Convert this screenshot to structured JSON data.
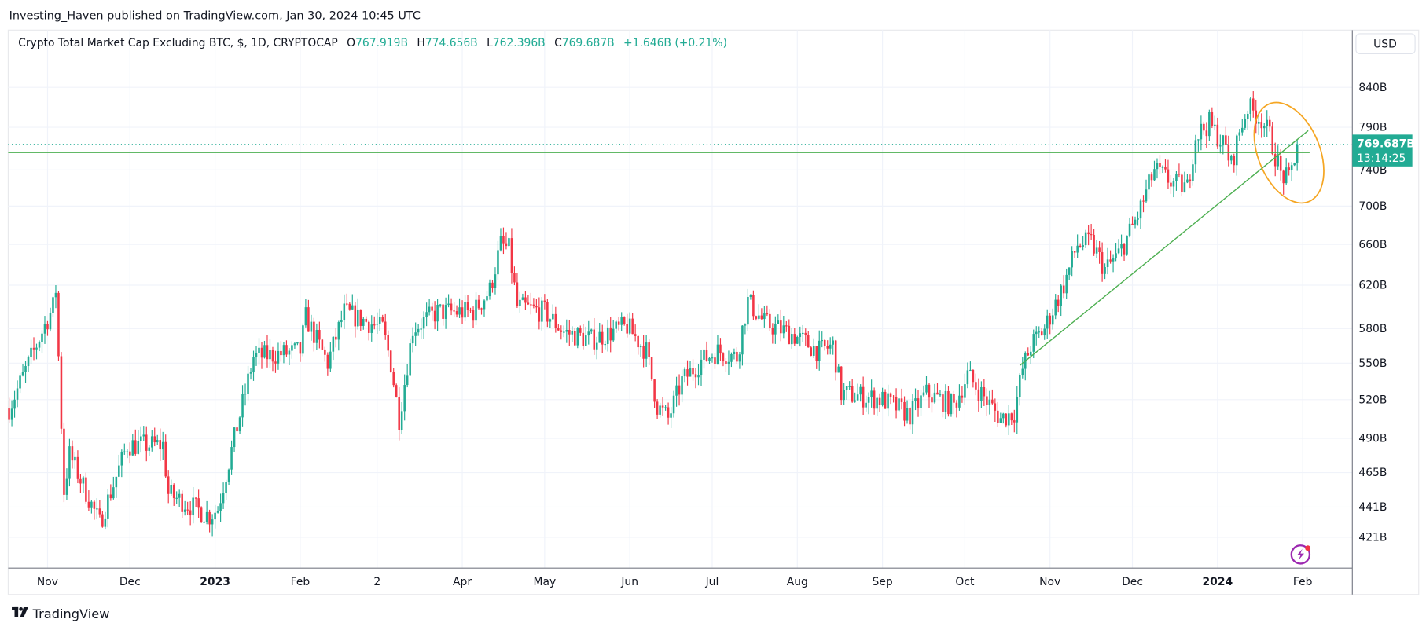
{
  "header": {
    "published": "Investing_Haven published on TradingView.com, Jan 30, 2024 10:45 UTC",
    "symbol": "Crypto Total Market Cap Excluding BTC, $, 1D, CRYPTOCAP",
    "open_label": "O",
    "open": "767.919B",
    "high_label": "H",
    "high": "774.656B",
    "low_label": "L",
    "low": "762.396B",
    "close_label": "C",
    "close": "769.687B",
    "change": "+1.646B (+0.21%)"
  },
  "price_axis": {
    "currency_button": "USD",
    "last_price": "769.687B",
    "countdown": "13:14:25"
  },
  "footer": {
    "brand": "TradingView"
  },
  "colors": {
    "up": "#22ab94",
    "down": "#f23645",
    "trendline": "#4caf50",
    "highlight_ellipse": "#f5a623",
    "price_tag": "#22ab94",
    "alert_icon": "#9c27b0"
  },
  "icons": [
    "tradingview-logo-icon",
    "lightning-alert-icon"
  ],
  "chart_data": {
    "type": "candlestick",
    "title": "Crypto Total Market Cap Excluding BTC, $, 1D, CRYPTOCAP",
    "yscale": "log",
    "ylim": [
      405,
      870
    ],
    "xlim": [
      "2022-10-18",
      "2024-02-15"
    ],
    "grid": true,
    "y_ticks": [
      "840B",
      "790B",
      "740B",
      "700B",
      "660B",
      "620B",
      "580B",
      "550B",
      "520B",
      "490B",
      "465B",
      "441B",
      "421B"
    ],
    "y_tick_values": [
      840,
      790,
      740,
      700,
      660,
      620,
      580,
      550,
      520,
      490,
      465,
      441,
      421
    ],
    "x_ticks": [
      {
        "label": "Nov",
        "date": "2022-11-01"
      },
      {
        "label": "Dec",
        "date": "2022-12-01"
      },
      {
        "label": "2023",
        "date": "2023-01-01",
        "bold": true
      },
      {
        "label": "Feb",
        "date": "2023-02-01"
      },
      {
        "label": "2",
        "date": "2023-03-01"
      },
      {
        "label": "Apr",
        "date": "2023-04-01"
      },
      {
        "label": "May",
        "date": "2023-05-01"
      },
      {
        "label": "Jun",
        "date": "2023-06-01"
      },
      {
        "label": "Jul",
        "date": "2023-07-01"
      },
      {
        "label": "Aug",
        "date": "2023-08-01"
      },
      {
        "label": "Sep",
        "date": "2023-09-01"
      },
      {
        "label": "Oct",
        "date": "2023-10-01"
      },
      {
        "label": "Nov",
        "date": "2023-11-01"
      },
      {
        "label": "Dec",
        "date": "2023-12-01"
      },
      {
        "label": "2024",
        "date": "2024-01-01",
        "bold": true
      },
      {
        "label": "Feb",
        "date": "2024-02-01"
      }
    ],
    "approx_closes_billion_usd": [
      [
        "2022-10-18",
        513
      ],
      [
        "2022-11-03",
        600
      ],
      [
        "2022-11-04",
        616
      ],
      [
        "2022-11-07",
        452
      ],
      [
        "2022-11-09",
        478
      ],
      [
        "2022-11-20",
        430
      ],
      [
        "2022-11-30",
        485
      ],
      [
        "2022-12-13",
        485
      ],
      [
        "2022-12-15",
        450
      ],
      [
        "2022-12-30",
        435
      ],
      [
        "2023-01-02",
        440
      ],
      [
        "2023-01-15",
        555
      ],
      [
        "2023-02-01",
        560
      ],
      [
        "2023-02-03",
        590
      ],
      [
        "2023-02-11",
        550
      ],
      [
        "2023-02-17",
        595
      ],
      [
        "2023-03-03",
        580
      ],
      [
        "2023-03-06",
        550
      ],
      [
        "2023-03-09",
        505
      ],
      [
        "2023-03-14",
        580
      ],
      [
        "2023-03-23",
        595
      ],
      [
        "2023-04-05",
        595
      ],
      [
        "2023-04-11",
        615
      ],
      [
        "2023-04-15",
        660
      ],
      [
        "2023-04-18",
        655
      ],
      [
        "2023-04-21",
        600
      ],
      [
        "2023-05-01",
        595
      ],
      [
        "2023-05-08",
        577
      ],
      [
        "2023-05-18",
        570
      ],
      [
        "2023-05-31",
        582
      ],
      [
        "2023-06-07",
        560
      ],
      [
        "2023-06-11",
        515
      ],
      [
        "2023-06-15",
        505
      ],
      [
        "2023-06-20",
        535
      ],
      [
        "2023-06-27",
        552
      ],
      [
        "2023-07-03",
        560
      ],
      [
        "2023-07-10",
        555
      ],
      [
        "2023-07-14",
        605
      ],
      [
        "2023-07-20",
        585
      ],
      [
        "2023-07-30",
        575
      ],
      [
        "2023-08-09",
        560
      ],
      [
        "2023-08-14",
        565
      ],
      [
        "2023-08-17",
        525
      ],
      [
        "2023-09-01",
        520
      ],
      [
        "2023-09-11",
        508
      ],
      [
        "2023-09-17",
        525
      ],
      [
        "2023-09-27",
        515
      ],
      [
        "2023-10-02",
        540
      ],
      [
        "2023-10-07",
        525
      ],
      [
        "2023-10-14",
        505
      ],
      [
        "2023-10-19",
        510
      ],
      [
        "2023-10-22",
        545
      ],
      [
        "2023-10-25",
        565
      ],
      [
        "2023-10-30",
        580
      ],
      [
        "2023-11-06",
        620
      ],
      [
        "2023-11-11",
        660
      ],
      [
        "2023-11-16",
        662
      ],
      [
        "2023-11-21",
        635
      ],
      [
        "2023-11-26",
        650
      ],
      [
        "2023-12-03",
        690
      ],
      [
        "2023-12-09",
        740
      ],
      [
        "2023-12-16",
        725
      ],
      [
        "2023-12-21",
        720
      ],
      [
        "2023-12-24",
        780
      ],
      [
        "2023-12-29",
        795
      ],
      [
        "2024-01-04",
        765
      ],
      [
        "2024-01-06",
        745
      ],
      [
        "2024-01-09",
        785
      ],
      [
        "2024-01-12",
        815
      ],
      [
        "2024-01-17",
        800
      ],
      [
        "2024-01-20",
        780
      ],
      [
        "2024-01-24",
        735
      ],
      [
        "2024-01-27",
        728
      ],
      [
        "2024-01-30",
        769.687
      ]
    ],
    "annotations": {
      "horizontal_line": 760,
      "trendline": [
        [
          "2023-10-21",
          548
        ],
        [
          "2024-02-03",
          786
        ]
      ],
      "ellipse_around": "2024-01-28"
    }
  }
}
